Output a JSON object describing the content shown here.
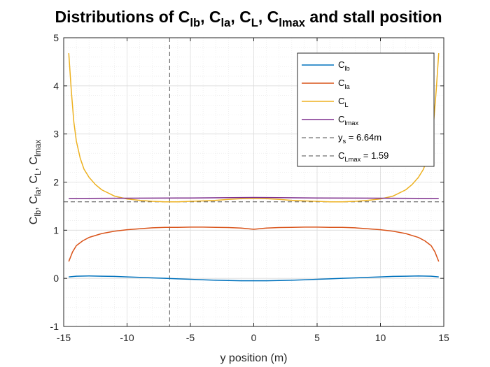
{
  "title": {
    "prefix": "Distributions of ",
    "parts": [
      {
        "base": "C",
        "sub": "lb",
        "after": ", "
      },
      {
        "base": "C",
        "sub": "la",
        "after": ", "
      },
      {
        "base": "C",
        "sub": "L",
        "after": ", "
      },
      {
        "base": "C",
        "sub": "lmax",
        "after": " and stall position"
      }
    ]
  },
  "chart_data": {
    "type": "line",
    "xlabel": "y position (m)",
    "ylabel_parts": [
      {
        "base": "C",
        "sub": "lb",
        "after": ", "
      },
      {
        "base": "C",
        "sub": "la",
        "after": ", "
      },
      {
        "base": "C",
        "sub": "L",
        "after": ", "
      },
      {
        "base": "C",
        "sub": "lmax",
        "after": ""
      }
    ],
    "xlim": [
      -15,
      15
    ],
    "ylim": [
      -1,
      5
    ],
    "xticks": [
      -15,
      -10,
      -5,
      0,
      5,
      10,
      15
    ],
    "yticks": [
      -1,
      0,
      1,
      2,
      3,
      4,
      5
    ],
    "xtick_labels": [
      "-15",
      "-10",
      "-5",
      "0",
      "5",
      "10",
      "15"
    ],
    "ytick_labels": [
      "-1",
      "0",
      "1",
      "2",
      "3",
      "4",
      "5"
    ],
    "grid": true,
    "minor_grid": true,
    "legend_position": "top-right",
    "series": [
      {
        "name": "C_lb",
        "label_base": "C",
        "label_sub": "lb",
        "label_after": "",
        "color": "#0072BD",
        "style": "solid",
        "x": [
          -14.6,
          -14,
          -13,
          -12,
          -11,
          -10,
          -9,
          -8,
          -7,
          -6,
          -5,
          -4,
          -3,
          -2,
          -1,
          0,
          1,
          2,
          3,
          4,
          5,
          6,
          7,
          8,
          9,
          10,
          11,
          12,
          13,
          14,
          14.6
        ],
        "y": [
          0.03,
          0.045,
          0.05,
          0.045,
          0.04,
          0.03,
          0.02,
          0.01,
          0.0,
          -0.01,
          -0.02,
          -0.03,
          -0.04,
          -0.045,
          -0.05,
          -0.05,
          -0.05,
          -0.045,
          -0.04,
          -0.03,
          -0.02,
          -0.01,
          0.0,
          0.01,
          0.02,
          0.03,
          0.04,
          0.045,
          0.05,
          0.045,
          0.03
        ]
      },
      {
        "name": "C_la",
        "label_base": "C",
        "label_sub": "la",
        "label_after": "",
        "color": "#D95319",
        "style": "solid",
        "x": [
          -14.6,
          -14.3,
          -14,
          -13.5,
          -13,
          -12,
          -11,
          -10,
          -9,
          -8,
          -7,
          -6,
          -5,
          -4,
          -3,
          -2,
          -1,
          0,
          1,
          2,
          3,
          4,
          5,
          6,
          7,
          8,
          9,
          10,
          11,
          12,
          13,
          13.5,
          14,
          14.3,
          14.6
        ],
        "y": [
          0.35,
          0.55,
          0.68,
          0.78,
          0.85,
          0.93,
          0.98,
          1.01,
          1.03,
          1.05,
          1.06,
          1.06,
          1.065,
          1.065,
          1.06,
          1.055,
          1.045,
          1.02,
          1.045,
          1.055,
          1.06,
          1.065,
          1.065,
          1.06,
          1.06,
          1.05,
          1.03,
          1.01,
          0.98,
          0.93,
          0.85,
          0.78,
          0.68,
          0.55,
          0.35
        ]
      },
      {
        "name": "C_L",
        "label_base": "C",
        "label_sub": "L",
        "label_after": "",
        "color": "#EDB120",
        "style": "solid",
        "x": [
          -14.6,
          -14.4,
          -14.2,
          -14,
          -13.7,
          -13.4,
          -13,
          -12.5,
          -12,
          -11,
          -10,
          -9,
          -8,
          -7,
          -6,
          -5,
          -4,
          -3,
          -2,
          -1,
          0,
          1,
          2,
          3,
          4,
          5,
          6,
          7,
          8,
          9,
          10,
          11,
          12,
          12.5,
          13,
          13.4,
          13.7,
          14,
          14.2,
          14.4,
          14.6
        ],
        "y": [
          4.68,
          3.9,
          3.25,
          2.85,
          2.5,
          2.27,
          2.1,
          1.95,
          1.84,
          1.71,
          1.65,
          1.62,
          1.6,
          1.59,
          1.59,
          1.6,
          1.61,
          1.62,
          1.64,
          1.655,
          1.66,
          1.655,
          1.64,
          1.62,
          1.61,
          1.6,
          1.59,
          1.59,
          1.6,
          1.62,
          1.65,
          1.71,
          1.84,
          1.95,
          2.1,
          2.27,
          2.5,
          2.85,
          3.25,
          3.9,
          4.68
        ]
      },
      {
        "name": "C_lmax",
        "label_base": "C",
        "label_sub": "lmax",
        "label_after": "",
        "color": "#7E2F8E",
        "style": "solid",
        "x": [
          -14.6,
          -10,
          -5,
          0,
          5,
          10,
          14.6
        ],
        "y": [
          1.66,
          1.665,
          1.67,
          1.68,
          1.67,
          1.665,
          1.66
        ]
      }
    ],
    "reference_lines": [
      {
        "name": "y_s = 6.64m",
        "label_base": "y",
        "label_sub": "s",
        "label_after": " = 6.64m",
        "orientation": "vertical",
        "value": -6.64,
        "color": "#4d4d4d",
        "style": "dashed"
      },
      {
        "name": "C_Lmax = 1.59",
        "label_base": "C",
        "label_sub": "Lmax",
        "label_after": " = 1.59",
        "orientation": "horizontal",
        "value": 1.59,
        "color": "#4d4d4d",
        "style": "dashed"
      }
    ]
  }
}
